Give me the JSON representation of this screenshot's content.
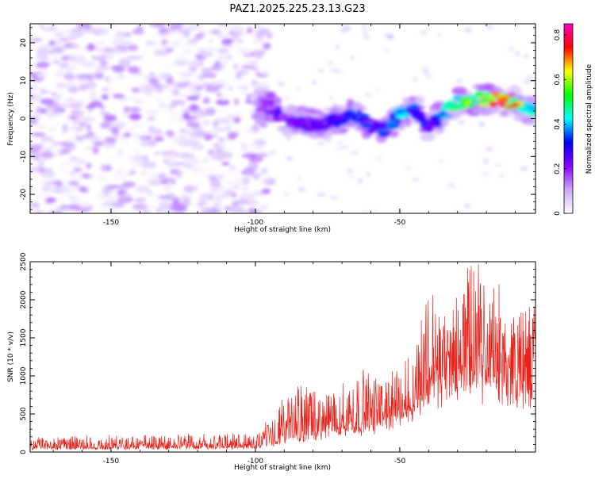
{
  "title": "PAZ1.2025.225.23.13.G23",
  "chart_data": [
    {
      "type": "heatmap",
      "xlabel": "Height of straight line (km)",
      "ylabel": "Frequency (Hz)",
      "xlim": [
        -178,
        -3
      ],
      "ylim": [
        -25,
        25
      ],
      "xticks": [
        -150,
        -100,
        -50
      ],
      "yticks": [
        -20,
        -10,
        0,
        10,
        20
      ],
      "colorbar": {
        "label": "Normalized spectral amplitude",
        "range": [
          0,
          0.85
        ],
        "ticks": [
          0,
          0.2,
          0.4,
          0.6,
          0.8
        ],
        "colors": [
          "#ffffff",
          "#c9a6ff",
          "#8a00ff",
          "#0000ff",
          "#00ffff",
          "#00ff00",
          "#ffff00",
          "#ff0000",
          "#ff00c0"
        ]
      },
      "signal_ridge": {
        "x": [
          -100,
          -95,
          -90,
          -85,
          -80,
          -75,
          -70,
          -65,
          -60,
          -55,
          -50,
          -45,
          -40,
          -35,
          -30,
          -25,
          -20,
          -15,
          -10,
          -5
        ],
        "frequency": [
          4,
          3,
          0,
          -1,
          -1.5,
          -1,
          0,
          1,
          -2,
          -3,
          1,
          3,
          -2,
          1,
          4,
          5,
          5,
          5,
          4,
          2
        ],
        "amplitude": [
          0.18,
          0.22,
          0.28,
          0.25,
          0.3,
          0.26,
          0.35,
          0.4,
          0.32,
          0.36,
          0.42,
          0.38,
          0.3,
          0.45,
          0.55,
          0.65,
          0.72,
          0.8,
          0.7,
          0.5
        ]
      },
      "noise_region_x": [
        -178,
        -95
      ],
      "noise_amplitude_max": 0.15
    },
    {
      "type": "line",
      "xlabel": "Height of straight line (km)",
      "ylabel": "SNR (10 * v/v)",
      "xlim": [
        -178,
        -3
      ],
      "ylim": [
        0,
        2500
      ],
      "xticks": [
        -150,
        -100,
        -50
      ],
      "yticks": [
        0,
        500,
        1000,
        1500,
        2000,
        2500
      ],
      "color": "#e8231c",
      "envelope": {
        "x": [
          -178,
          -150,
          -120,
          -100,
          -95,
          -90,
          -85,
          -80,
          -75,
          -70,
          -65,
          -60,
          -55,
          -50,
          -45,
          -40,
          -35,
          -30,
          -25,
          -20,
          -15,
          -10,
          -5,
          -3
        ],
        "base": [
          40,
          40,
          45,
          50,
          80,
          130,
          170,
          200,
          230,
          250,
          280,
          320,
          350,
          420,
          550,
          700,
          800,
          850,
          900,
          850,
          800,
          750,
          700,
          1300
        ],
        "peak": [
          200,
          220,
          230,
          250,
          450,
          700,
          900,
          750,
          800,
          900,
          1050,
          1000,
          950,
          1150,
          1300,
          2300,
          1800,
          2100,
          2500,
          2200,
          2000,
          1900,
          1950,
          2150
        ]
      }
    }
  ]
}
